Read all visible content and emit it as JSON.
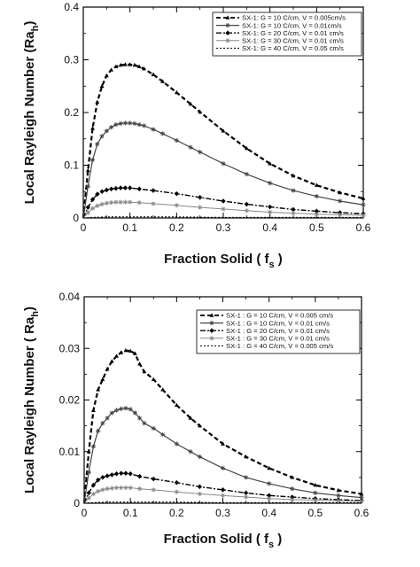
{
  "chart_data": [
    {
      "type": "line",
      "xlabel": "Fraction Solid ( f",
      "xlabel_sub": "s",
      "xlabel_end": " )",
      "ylabel": "Local Rayleigh Number (Ra",
      "ylabel_sub": "h",
      "ylabel_end": ")",
      "xlim": [
        0,
        0.6
      ],
      "ylim": [
        0,
        0.4
      ],
      "xticks": [
        "0",
        "0.1",
        "0.2",
        "0.3",
        "0.4",
        "0.5",
        "0.6"
      ],
      "yticks": [
        "0",
        "0.1",
        "0.2",
        "0.3",
        "0.4"
      ],
      "legend_position": "top-right",
      "series": [
        {
          "name": "SX-1: G = 10 C/cm, V = 0.005cm/s",
          "color": "#000000",
          "dash": "5,3",
          "width": 2.2,
          "marker": "triangle",
          "x": [
            0.0,
            0.01,
            0.02,
            0.03,
            0.04,
            0.05,
            0.06,
            0.07,
            0.08,
            0.09,
            0.1,
            0.11,
            0.12,
            0.13,
            0.15,
            0.17,
            0.2,
            0.23,
            0.25,
            0.3,
            0.35,
            0.4,
            0.45,
            0.5,
            0.55,
            0.6
          ],
          "y": [
            0.0,
            0.09,
            0.17,
            0.22,
            0.25,
            0.27,
            0.281,
            0.287,
            0.29,
            0.291,
            0.291,
            0.29,
            0.287,
            0.283,
            0.272,
            0.259,
            0.238,
            0.216,
            0.201,
            0.165,
            0.132,
            0.103,
            0.08,
            0.062,
            0.048,
            0.037
          ]
        },
        {
          "name": "SX-1: G = 10 C/cm, V = 0.01cm/s",
          "color": "#444444",
          "dash": "",
          "width": 1.2,
          "marker": "star",
          "x": [
            0.0,
            0.01,
            0.02,
            0.03,
            0.04,
            0.05,
            0.06,
            0.07,
            0.08,
            0.09,
            0.1,
            0.11,
            0.12,
            0.13,
            0.15,
            0.17,
            0.2,
            0.23,
            0.25,
            0.3,
            0.35,
            0.4,
            0.45,
            0.5,
            0.55,
            0.6
          ],
          "y": [
            0.0,
            0.06,
            0.11,
            0.14,
            0.155,
            0.165,
            0.172,
            0.177,
            0.179,
            0.18,
            0.18,
            0.179,
            0.177,
            0.175,
            0.168,
            0.16,
            0.147,
            0.134,
            0.125,
            0.103,
            0.083,
            0.066,
            0.052,
            0.041,
            0.032,
            0.025
          ]
        },
        {
          "name": "SX-1: G = 20 C/cm, V = 0.01 cm/s",
          "color": "#000000",
          "dash": "6,2,2,2",
          "width": 1.4,
          "marker": "diamond",
          "x": [
            0.0,
            0.01,
            0.02,
            0.03,
            0.04,
            0.05,
            0.06,
            0.07,
            0.08,
            0.09,
            0.1,
            0.12,
            0.15,
            0.2,
            0.25,
            0.3,
            0.35,
            0.4,
            0.45,
            0.5,
            0.55,
            0.6
          ],
          "y": [
            0.0,
            0.02,
            0.035,
            0.045,
            0.05,
            0.053,
            0.055,
            0.056,
            0.057,
            0.057,
            0.057,
            0.055,
            0.052,
            0.046,
            0.039,
            0.032,
            0.026,
            0.021,
            0.016,
            0.013,
            0.01,
            0.008
          ]
        },
        {
          "name": "SX-1: G = 30 C/cm, V = 0.01 cm/s",
          "color": "#888888",
          "dash": "",
          "width": 1.0,
          "marker": "star",
          "x": [
            0.0,
            0.01,
            0.02,
            0.03,
            0.04,
            0.05,
            0.06,
            0.07,
            0.08,
            0.09,
            0.1,
            0.12,
            0.15,
            0.2,
            0.25,
            0.3,
            0.35,
            0.4,
            0.45,
            0.5,
            0.55,
            0.6
          ],
          "y": [
            0.0,
            0.01,
            0.018,
            0.023,
            0.026,
            0.028,
            0.029,
            0.03,
            0.03,
            0.03,
            0.03,
            0.029,
            0.027,
            0.024,
            0.02,
            0.017,
            0.014,
            0.011,
            0.009,
            0.007,
            0.006,
            0.005
          ]
        },
        {
          "name": "SX-1: G = 40 C/cm, V = 0.05 cm/s",
          "color": "#000000",
          "dash": "2,2",
          "width": 1.0,
          "marker": "none",
          "x": [
            0.0,
            0.02,
            0.05,
            0.1,
            0.15,
            0.2,
            0.3,
            0.4,
            0.5,
            0.6
          ],
          "y": [
            0.0,
            0.001,
            0.002,
            0.002,
            0.002,
            0.002,
            0.001,
            0.001,
            0.001,
            0.001
          ]
        }
      ]
    },
    {
      "type": "line",
      "xlabel": "Fraction Solid ( f",
      "xlabel_sub": "s",
      "xlabel_end": " )",
      "ylabel": "Local Rayleigh Number ( Ra",
      "ylabel_sub": "h",
      "ylabel_end": ")",
      "xlim": [
        0,
        0.6
      ],
      "ylim": [
        0,
        0.04
      ],
      "xticks": [
        "0",
        "0.1",
        "0.2",
        "0.3",
        "0.4",
        "0.5",
        "0.6"
      ],
      "yticks": [
        "0",
        "0.01",
        "0.02",
        "0.03",
        "0.04"
      ],
      "legend_position": "top-right",
      "series": [
        {
          "name": "SX-1 : G = 10 C/cm, V = 0.005 cm/s",
          "color": "#000000",
          "dash": "5,3",
          "width": 2.2,
          "marker": "triangle",
          "x": [
            0.0,
            0.01,
            0.02,
            0.03,
            0.04,
            0.05,
            0.06,
            0.07,
            0.08,
            0.09,
            0.1,
            0.11,
            0.12,
            0.13,
            0.15,
            0.17,
            0.2,
            0.23,
            0.25,
            0.3,
            0.35,
            0.4,
            0.45,
            0.5,
            0.55,
            0.6
          ],
          "y": [
            0.0,
            0.01,
            0.018,
            0.022,
            0.024,
            0.026,
            0.0275,
            0.0285,
            0.0292,
            0.0296,
            0.0295,
            0.029,
            0.027,
            0.0255,
            0.024,
            0.022,
            0.019,
            0.0165,
            0.015,
            0.0115,
            0.009,
            0.0068,
            0.005,
            0.0035,
            0.0025,
            0.0018
          ]
        },
        {
          "name": "SX-1 : G = 10 C/cm, V = 0.01 cm/s",
          "color": "#444444",
          "dash": "",
          "width": 1.2,
          "marker": "star",
          "x": [
            0.0,
            0.01,
            0.02,
            0.03,
            0.04,
            0.05,
            0.06,
            0.07,
            0.08,
            0.09,
            0.1,
            0.11,
            0.12,
            0.13,
            0.15,
            0.17,
            0.2,
            0.23,
            0.25,
            0.3,
            0.35,
            0.4,
            0.45,
            0.5,
            0.55,
            0.6
          ],
          "y": [
            0.0,
            0.006,
            0.011,
            0.014,
            0.0155,
            0.0165,
            0.0175,
            0.018,
            0.0183,
            0.0184,
            0.0182,
            0.0175,
            0.0165,
            0.0155,
            0.0145,
            0.0133,
            0.0115,
            0.01,
            0.009,
            0.0068,
            0.005,
            0.0038,
            0.0028,
            0.002,
            0.0015,
            0.0011
          ]
        },
        {
          "name": "SX-1 : G = 20 C/cm, V = 0.01 cm/s",
          "color": "#000000",
          "dash": "6,2,2,2",
          "width": 1.4,
          "marker": "diamond",
          "x": [
            0.0,
            0.01,
            0.02,
            0.03,
            0.04,
            0.05,
            0.06,
            0.07,
            0.08,
            0.09,
            0.1,
            0.12,
            0.15,
            0.2,
            0.25,
            0.3,
            0.35,
            0.4,
            0.45,
            0.5,
            0.55,
            0.6
          ],
          "y": [
            0.0,
            0.002,
            0.0035,
            0.0045,
            0.005,
            0.0053,
            0.0055,
            0.0057,
            0.0058,
            0.0058,
            0.0057,
            0.0052,
            0.0047,
            0.004,
            0.0032,
            0.0026,
            0.002,
            0.0015,
            0.0012,
            0.0009,
            0.0007,
            0.0005
          ]
        },
        {
          "name": "SX-1 : G = 30 C/cm, V = 0.01 cm/s",
          "color": "#888888",
          "dash": "",
          "width": 1.0,
          "marker": "star",
          "x": [
            0.0,
            0.01,
            0.02,
            0.03,
            0.04,
            0.05,
            0.06,
            0.07,
            0.08,
            0.09,
            0.1,
            0.12,
            0.15,
            0.2,
            0.25,
            0.3,
            0.35,
            0.4,
            0.45,
            0.5,
            0.55,
            0.6
          ],
          "y": [
            0.0,
            0.001,
            0.0018,
            0.0023,
            0.0026,
            0.0028,
            0.0029,
            0.003,
            0.003,
            0.003,
            0.003,
            0.0028,
            0.0026,
            0.0022,
            0.0018,
            0.0015,
            0.0012,
            0.0009,
            0.0007,
            0.0006,
            0.0005,
            0.0004
          ]
        },
        {
          "name": "SX-1 : G = 40 C/cm, V = 0.005 cm/s",
          "color": "#000000",
          "dash": "2,2",
          "width": 1.0,
          "marker": "none",
          "x": [
            0.0,
            0.02,
            0.05,
            0.1,
            0.15,
            0.2,
            0.3,
            0.4,
            0.5,
            0.6
          ],
          "y": [
            0.0,
            0.0001,
            0.0002,
            0.0002,
            0.0002,
            0.0002,
            0.0001,
            0.0001,
            0.0001,
            0.0001
          ]
        }
      ]
    }
  ]
}
